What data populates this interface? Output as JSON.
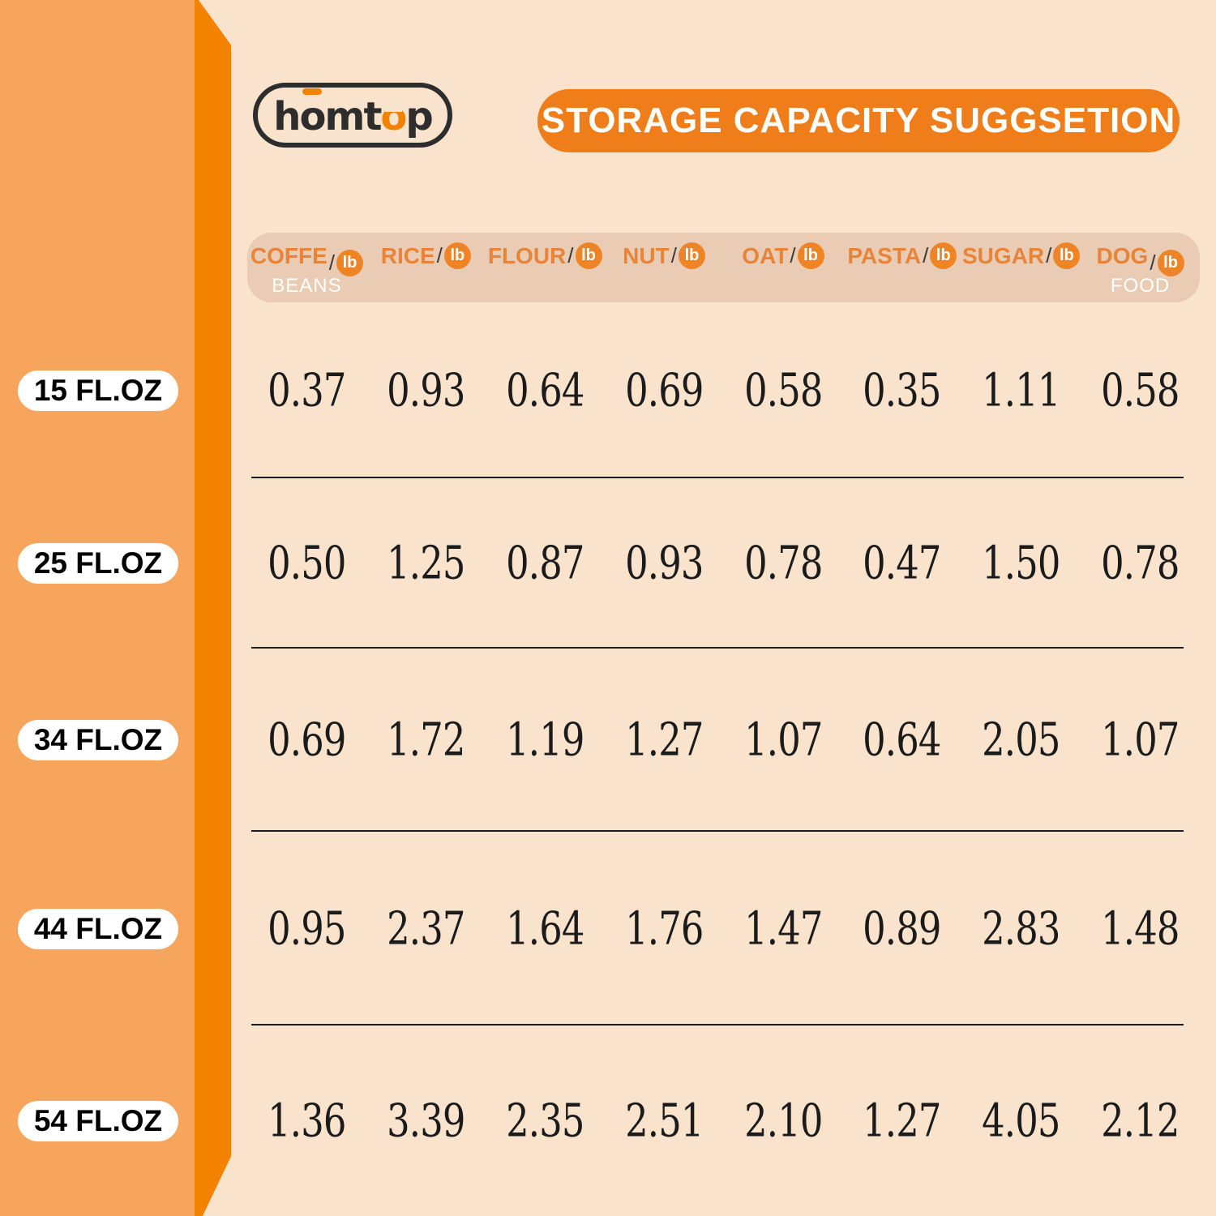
{
  "logo": {
    "seg1": "h",
    "seg2": "o",
    "seg3": "mt",
    "seg4": "o",
    "seg5": "p"
  },
  "chart_data": {
    "type": "table",
    "title": "STORAGE CAPACITY SUGGSETION",
    "unit": "lb",
    "unit_separator": "/",
    "columns": [
      {
        "name": "COFFE",
        "sub": "BEANS"
      },
      {
        "name": "RICE",
        "sub": ""
      },
      {
        "name": "FLOUR",
        "sub": ""
      },
      {
        "name": "NUT",
        "sub": ""
      },
      {
        "name": "OAT",
        "sub": ""
      },
      {
        "name": "PASTA",
        "sub": ""
      },
      {
        "name": "SUGAR",
        "sub": ""
      },
      {
        "name": "DOG",
        "sub": "FOOD"
      }
    ],
    "rows": [
      {
        "label": "15 FL.OZ",
        "values": [
          "0.37",
          "0.93",
          "0.64",
          "0.69",
          "0.58",
          "0.35",
          "1.11",
          "0.58"
        ]
      },
      {
        "label": "25 FL.OZ",
        "values": [
          "0.50",
          "1.25",
          "0.87",
          "0.93",
          "0.78",
          "0.47",
          "1.50",
          "0.78"
        ]
      },
      {
        "label": "34 FL.OZ",
        "values": [
          "0.69",
          "1.72",
          "1.19",
          "1.27",
          "1.07",
          "0.64",
          "2.05",
          "1.07"
        ]
      },
      {
        "label": "44 FL.OZ",
        "values": [
          "0.95",
          "2.37",
          "1.64",
          "1.76",
          "1.47",
          "0.89",
          "2.83",
          "1.48"
        ]
      },
      {
        "label": "54 FL.OZ",
        "values": [
          "1.36",
          "3.39",
          "2.35",
          "2.51",
          "2.10",
          "1.27",
          "4.05",
          "2.12"
        ]
      }
    ]
  },
  "colors": {
    "background": "#fae3cc",
    "sidebar": "#f7a55d",
    "sidebar_edge": "#f28200",
    "accent_banner": "#ef7d1a",
    "header_band": "#e9ccb3",
    "header_text": "#e8843a",
    "unit_badge": "#ee8426",
    "number_text": "#1b1b1b"
  }
}
